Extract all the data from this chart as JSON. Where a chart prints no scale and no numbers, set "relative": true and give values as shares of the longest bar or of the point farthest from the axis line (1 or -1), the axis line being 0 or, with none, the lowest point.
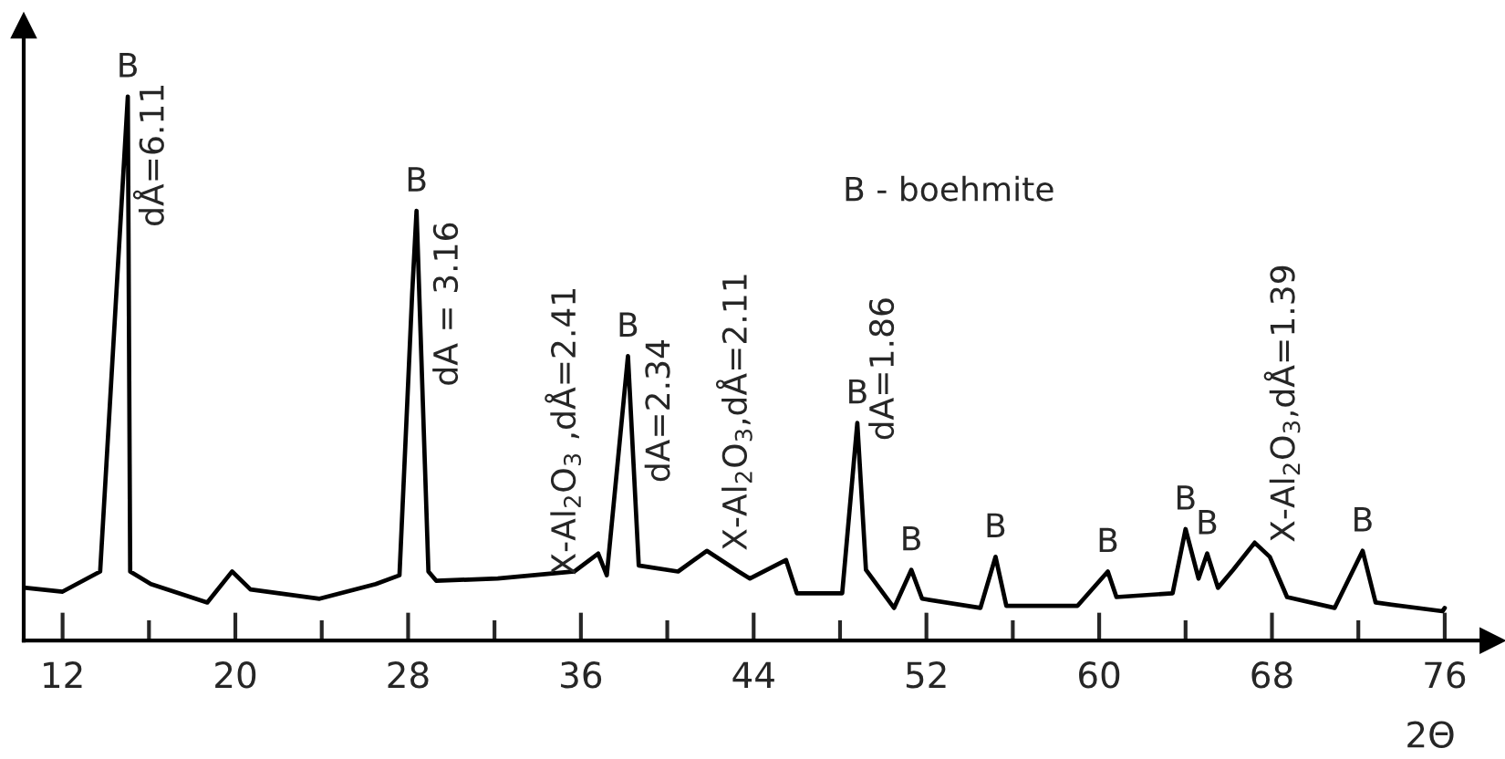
{
  "chart_data": {
    "type": "line",
    "relative": true,
    "xlabel": "2Θ",
    "x": [
      10.3,
      12.0,
      13.74,
      15.02,
      15.13,
      16.09,
      18.7,
      19.85,
      20.7,
      23.9,
      26.5,
      27.6,
      28.19,
      28.39,
      28.94,
      29.3,
      32.15,
      35.7,
      36.8,
      37.2,
      38.18,
      38.68,
      40.5,
      41.83,
      43.3,
      43.83,
      45.5,
      46.0,
      48.1,
      48.8,
      49.2,
      50.5,
      51.3,
      51.8,
      54.5,
      55.2,
      55.7,
      59.0,
      60.4,
      60.8,
      63.4,
      64.0,
      64.6,
      65.0,
      65.5,
      66.2,
      67.2,
      67.9,
      68.7,
      70.9,
      72.2,
      72.8,
      75.9,
      76.0
    ],
    "series": [
      {
        "color": "#000000",
        "values": [
          0.097,
          0.09,
          0.127,
          1.0,
          0.127,
          0.104,
          0.07,
          0.127,
          0.094,
          0.077,
          0.104,
          0.12,
          0.64,
          0.79,
          0.127,
          0.11,
          0.114,
          0.127,
          0.16,
          0.12,
          0.523,
          0.138,
          0.127,
          0.165,
          0.127,
          0.114,
          0.148,
          0.087,
          0.087,
          0.4,
          0.13,
          0.06,
          0.13,
          0.077,
          0.06,
          0.154,
          0.064,
          0.064,
          0.127,
          0.08,
          0.087,
          0.205,
          0.114,
          0.16,
          0.097,
          0.13,
          0.18,
          0.154,
          0.08,
          0.06,
          0.165,
          0.07,
          0.054,
          0.06
        ]
      }
    ],
    "xlim": [
      10.2,
      78.2
    ],
    "xticks": [
      12,
      {
        "value": 16,
        "label": null
      },
      20,
      {
        "value": 24,
        "label": null
      },
      28,
      {
        "value": 32,
        "label": null
      },
      36,
      {
        "value": 40,
        "label": null
      },
      44,
      {
        "value": 48,
        "label": null
      },
      52,
      {
        "value": 56,
        "label": null
      },
      60,
      {
        "value": 64,
        "label": null
      },
      68,
      {
        "value": 72,
        "label": null
      },
      76
    ],
    "tick_labels": "x",
    "grid": false,
    "legend": false,
    "marker": "none",
    "line_style": "solid",
    "annotations": [
      {
        "text": "B",
        "x": 15.02,
        "y": 1.0
      },
      {
        "text": "dÅ=6.11",
        "x": 15.05,
        "y": 0.76
      },
      {
        "text": "B",
        "x": 28.39,
        "y": 0.79
      },
      {
        "text": "dA = 3.16",
        "x": 28.66,
        "y": 0.467
      },
      {
        "text": "X-Al$_{2}$O$_{3}$ ,dÅ=2.41",
        "x": 33.9,
        "y": 0.12
      },
      {
        "text": "B",
        "x": 38.18,
        "y": 0.523
      },
      {
        "text": "dA=2.34",
        "x": 38.48,
        "y": 0.29
      },
      {
        "text": "X-Al$_{2}$O$_{3}$,dÅ=2.11",
        "x": 41.83,
        "y": 0.165
      },
      "B - boehmite",
      {
        "text": "B",
        "x": 48.8,
        "y": 0.4
      },
      {
        "text": "dA=1.86",
        "x": 48.85,
        "y": 0.367
      },
      {
        "text": "B",
        "x": 51.3,
        "y": 0.13
      },
      {
        "text": "B",
        "x": 55.2,
        "y": 0.154
      },
      {
        "text": "B",
        "x": 60.4,
        "y": 0.127
      },
      {
        "text": "B",
        "x": 64.0,
        "y": 0.205
      },
      {
        "text": "B",
        "x": 65.0,
        "y": 0.16
      },
      {
        "text": "X-Al$_{2}$O$_{3}$,dÅ=1.39",
        "x": 67.2,
        "y": 0.18
      },
      {
        "text": "B",
        "x": 72.2,
        "y": 0.165
      }
    ]
  }
}
